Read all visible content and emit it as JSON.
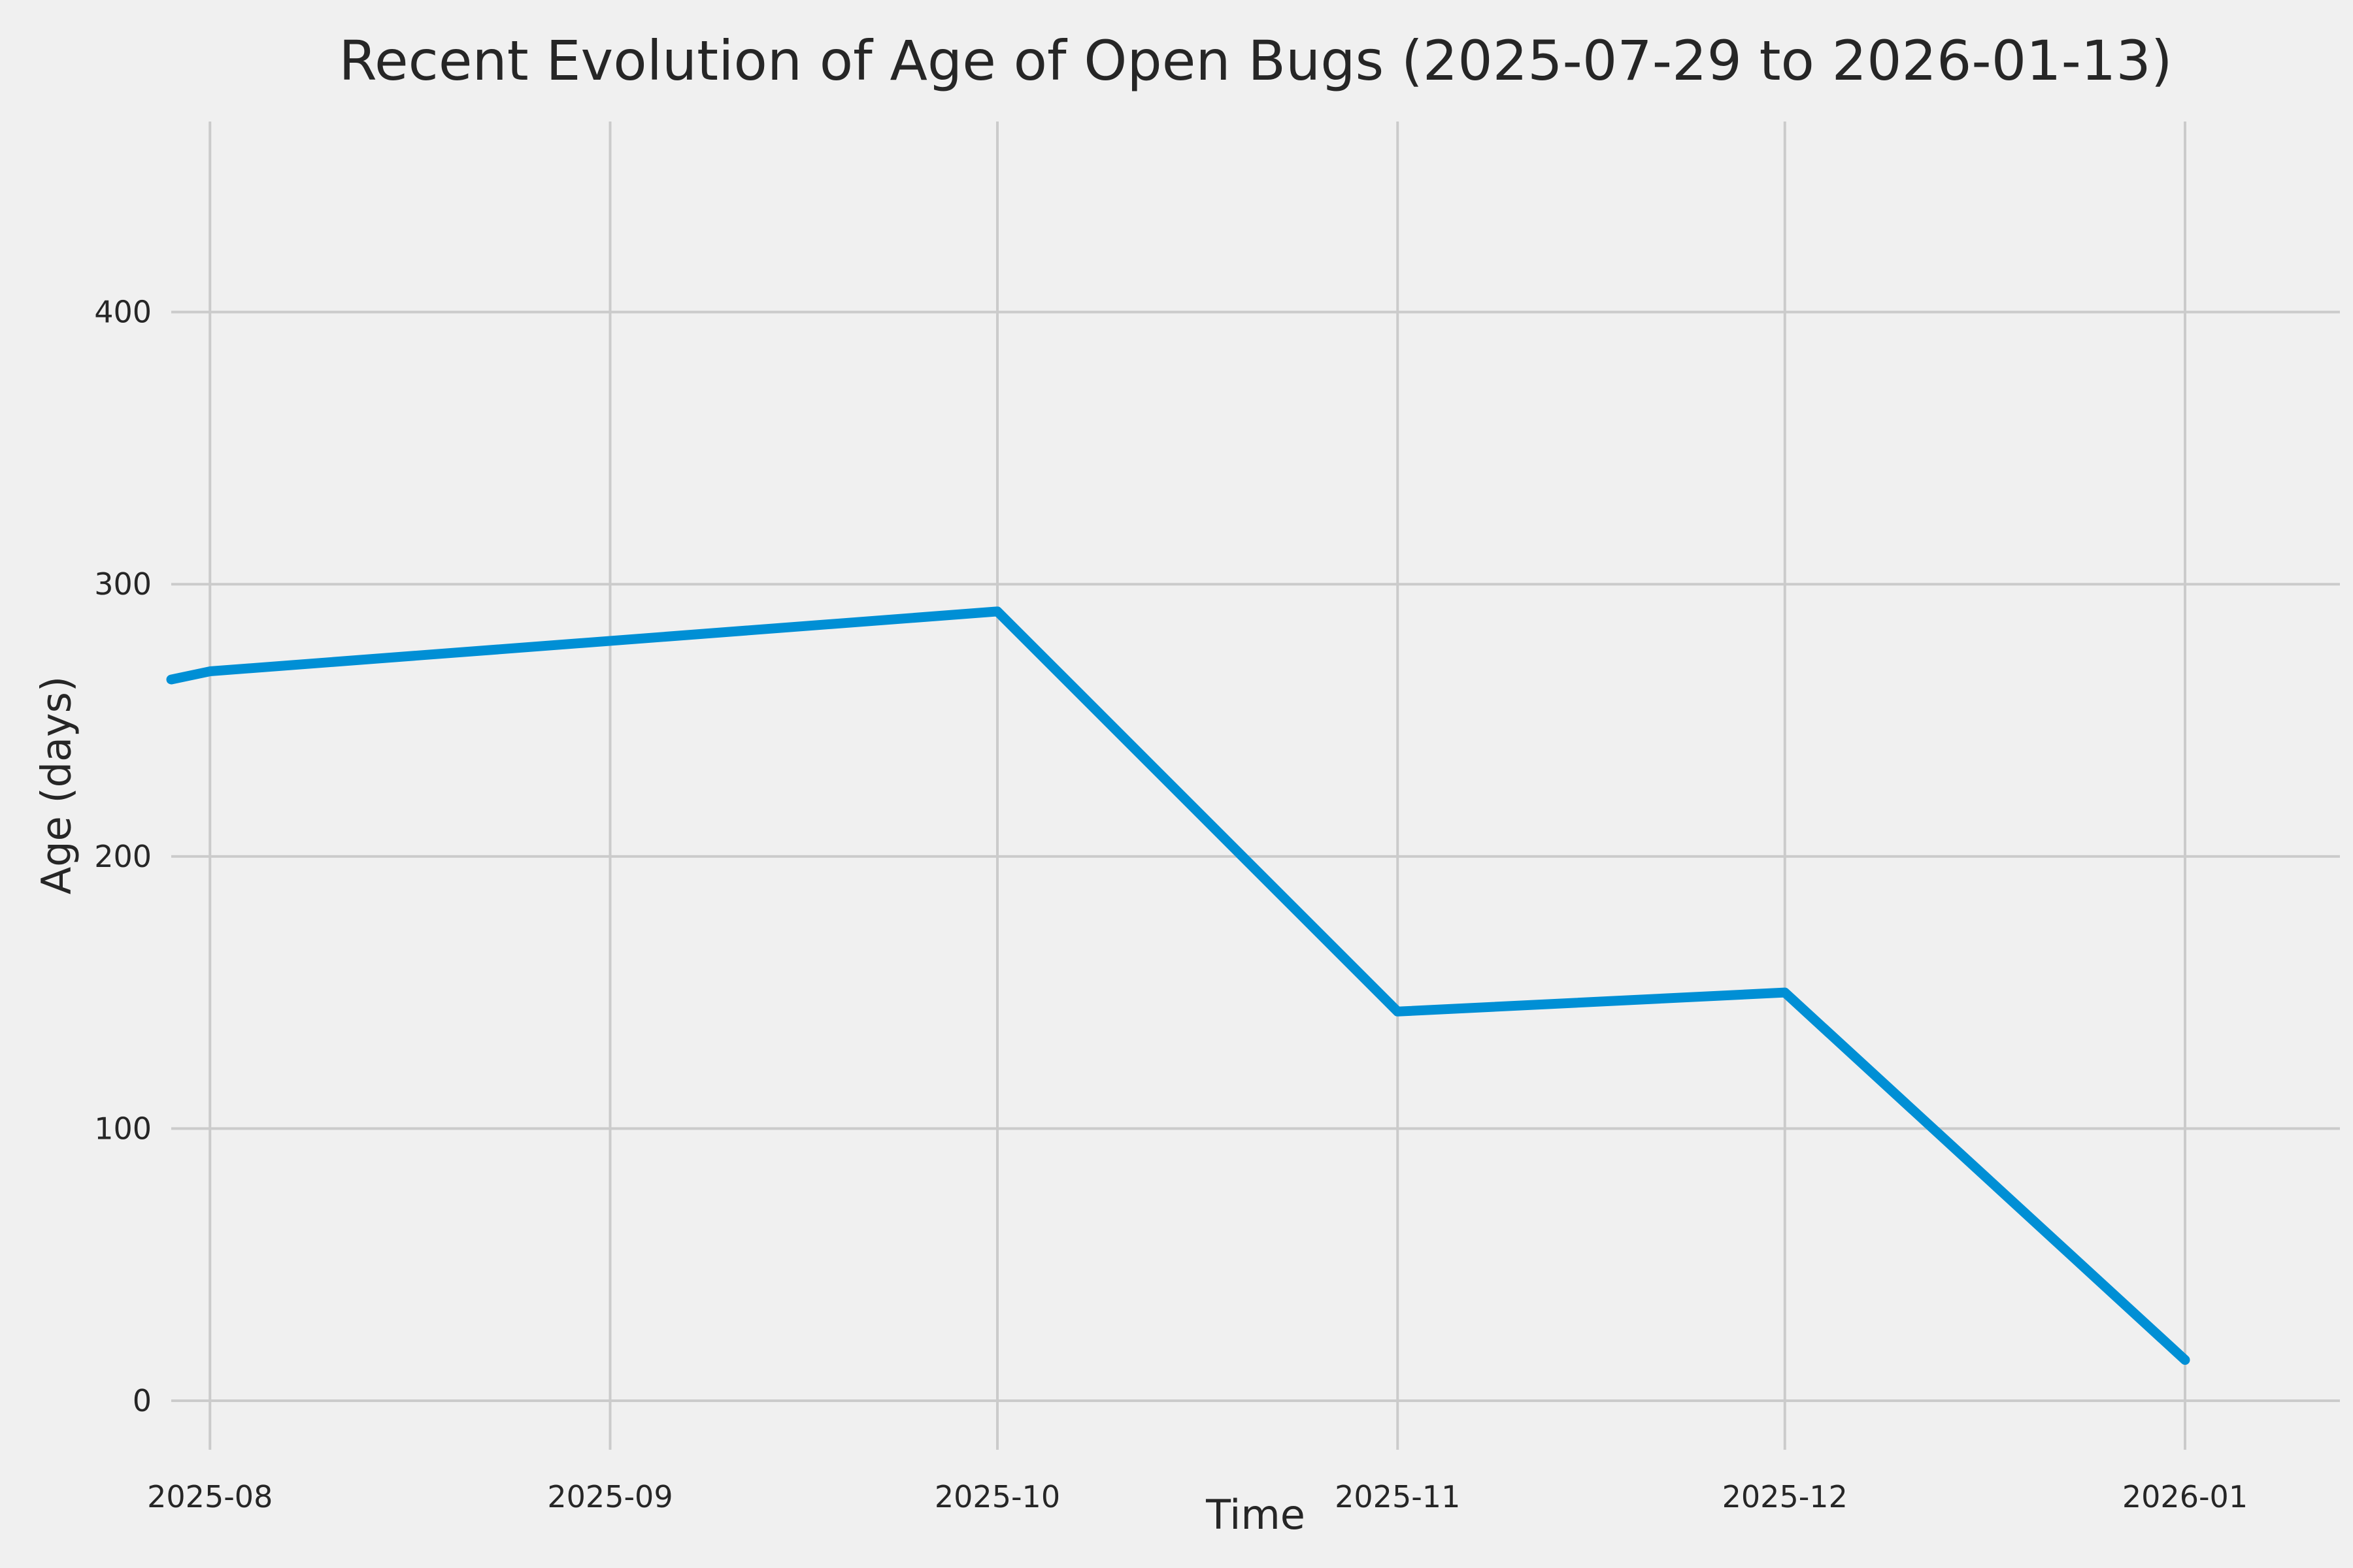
{
  "chart_data": {
    "type": "line",
    "title": "Recent Evolution of Age of Open Bugs (2025-07-29 to 2026-01-13)",
    "xlabel": "Time",
    "ylabel": "Age (days)",
    "x": [
      "2025-07-29",
      "2025-08-01",
      "2025-10-01",
      "2025-11-01",
      "2025-12-01",
      "2026-01-01"
    ],
    "y": [
      265,
      268,
      290,
      143,
      150,
      15
    ],
    "x_ticks": [
      {
        "date": "2025-08-01",
        "label": "2025-08"
      },
      {
        "date": "2025-09-01",
        "label": "2025-09"
      },
      {
        "date": "2025-10-01",
        "label": "2025-10"
      },
      {
        "date": "2025-11-01",
        "label": "2025-11"
      },
      {
        "date": "2025-12-01",
        "label": "2025-12"
      },
      {
        "date": "2026-01-01",
        "label": "2026-01"
      }
    ],
    "y_ticks": [
      0,
      100,
      200,
      300,
      400
    ],
    "xlim": [
      "2025-07-29",
      "2026-01-13"
    ],
    "ylim": [
      -18,
      470
    ],
    "grid": true,
    "legend": "none",
    "line_color": "#008fd5",
    "background_color": "#f0f0f0",
    "grid_color": "#cbcbcb",
    "text_color": "#262626"
  }
}
